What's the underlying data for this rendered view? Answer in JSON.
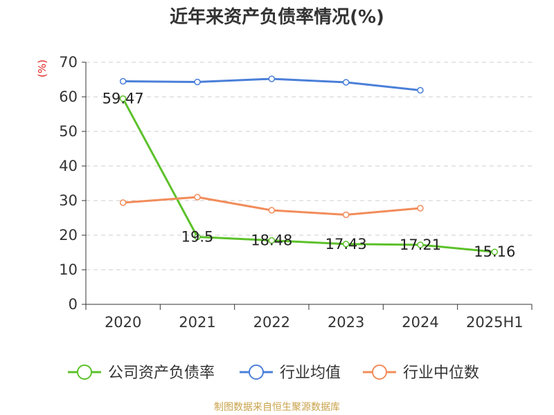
{
  "chart_data": {
    "type": "line",
    "title": "近年来资产负债率情况(%)",
    "ylabel": "(%)",
    "categories": [
      "2020",
      "2021",
      "2022",
      "2023",
      "2024",
      "2025H1"
    ],
    "yticks": [
      "0",
      "10",
      "20",
      "30",
      "40",
      "50",
      "60",
      "70"
    ],
    "ylim": [
      0,
      70
    ],
    "grid": true,
    "legend_position": "bottom",
    "series": [
      {
        "name": "公司资产负债率",
        "color": "#5cc12a",
        "values": [
          59.47,
          19.5,
          18.48,
          17.43,
          17.21,
          15.16
        ],
        "labels": [
          "59.47",
          "19.5",
          "18.48",
          "17.43",
          "17.21",
          "15.16"
        ]
      },
      {
        "name": "行业均值",
        "color": "#4a7fd8",
        "values": [
          64.5,
          64.3,
          65.2,
          64.2,
          61.9,
          null
        ]
      },
      {
        "name": "行业中位数",
        "color": "#f28c5a",
        "values": [
          29.4,
          31.0,
          27.2,
          25.9,
          27.8,
          null
        ]
      }
    ]
  },
  "source": "制图数据来自恒生聚源数据库"
}
